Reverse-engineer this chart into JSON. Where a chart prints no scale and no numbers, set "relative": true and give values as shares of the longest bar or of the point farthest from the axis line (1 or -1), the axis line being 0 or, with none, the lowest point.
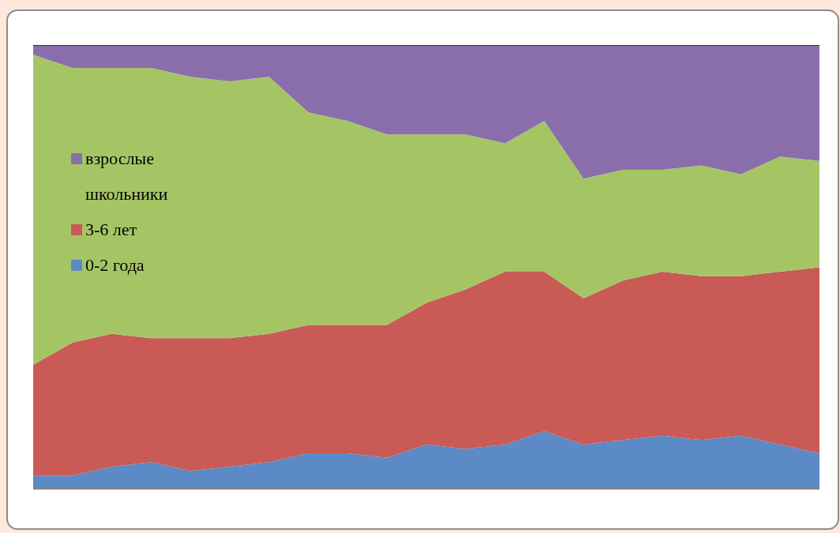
{
  "chart_data": {
    "type": "area",
    "stacked": true,
    "relative": true,
    "legend": "left",
    "grid": false,
    "categories": [
      null,
      null,
      null,
      null,
      null,
      null,
      null,
      null,
      null,
      null,
      null,
      null,
      null,
      null,
      null,
      null,
      null,
      null,
      null,
      null,
      null
    ],
    "series": [
      {
        "name": "0-2 года",
        "color": "#5b8ac6",
        "values": [
          0.03,
          0.03,
          0.05,
          0.06,
          0.04,
          0.05,
          0.06,
          0.08,
          0.08,
          0.07,
          0.1,
          0.09,
          0.1,
          0.13,
          0.1,
          0.11,
          0.12,
          0.11,
          0.12,
          0.1,
          0.08
        ]
      },
      {
        "name": "3-6 лет",
        "color": "#c95a56",
        "values": [
          0.25,
          0.3,
          0.3,
          0.28,
          0.3,
          0.29,
          0.29,
          0.29,
          0.29,
          0.3,
          0.32,
          0.36,
          0.39,
          0.36,
          0.33,
          0.36,
          0.37,
          0.37,
          0.36,
          0.39,
          0.42
        ]
      },
      {
        "name": "школьники",
        "color": "#a5c565",
        "values": [
          0.7,
          0.62,
          0.6,
          0.61,
          0.59,
          0.58,
          0.58,
          0.48,
          0.46,
          0.43,
          0.38,
          0.35,
          0.29,
          0.34,
          0.27,
          0.25,
          0.23,
          0.25,
          0.23,
          0.26,
          0.24
        ]
      },
      {
        "name": "взрослые",
        "color": "#8a6eab",
        "values": [
          0.02,
          0.05,
          0.05,
          0.05,
          0.07,
          0.08,
          0.07,
          0.15,
          0.17,
          0.2,
          0.2,
          0.2,
          0.22,
          0.17,
          0.3,
          0.28,
          0.28,
          0.27,
          0.29,
          0.25,
          0.26
        ]
      }
    ]
  }
}
